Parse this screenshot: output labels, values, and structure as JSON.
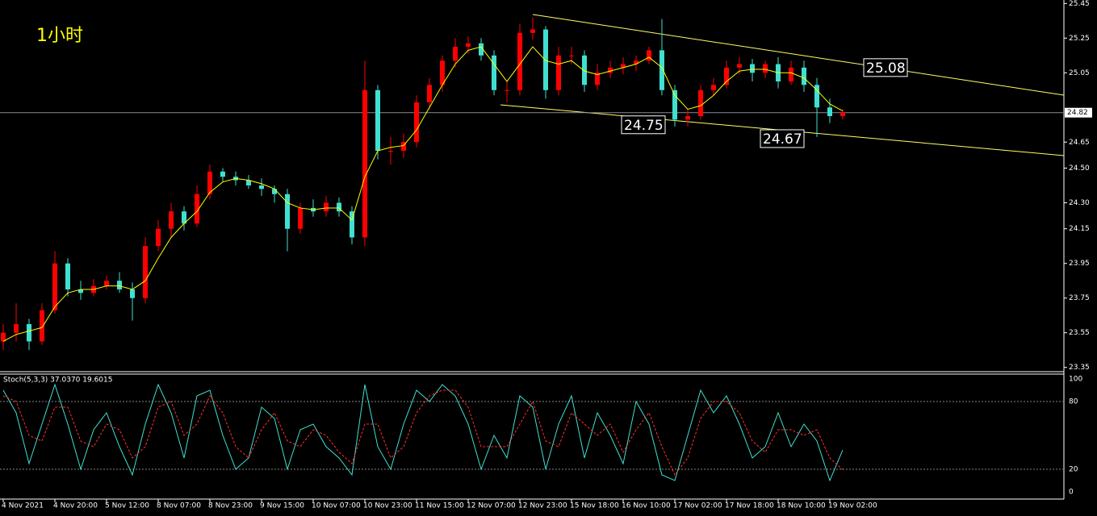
{
  "chart_data": {
    "type": "candlestick",
    "title": "1小时",
    "categories": [
      "4 Nov 2021",
      null,
      null,
      null,
      "4 Nov 20:00",
      null,
      null,
      null,
      "5 Nov 12:00",
      null,
      null,
      null,
      "8 Nov 07:00",
      null,
      null,
      null,
      "8 Nov 23:00",
      null,
      null,
      null,
      "9 Nov 15:00",
      null,
      null,
      null,
      "10 Nov 07:00",
      null,
      null,
      null,
      "10 Nov 23:00",
      null,
      null,
      null,
      "11 Nov 15:00",
      null,
      null,
      null,
      "12 Nov 07:00",
      null,
      null,
      null,
      "12 Nov 23:00",
      null,
      null,
      null,
      "15 Nov 18:00",
      null,
      null,
      null,
      "16 Nov 10:00",
      null,
      null,
      null,
      "17 Nov 02:00",
      null,
      null,
      null,
      "17 Nov 18:00",
      null,
      null,
      null,
      "18 Nov 10:00",
      null,
      null,
      null,
      "19 Nov 02:00",
      null
    ],
    "open": [
      23.5,
      23.55,
      23.6,
      23.5,
      23.68,
      23.95,
      23.8,
      23.78,
      23.82,
      23.85,
      23.8,
      23.75,
      24.05,
      24.15,
      24.25,
      24.18,
      24.35,
      24.48,
      24.45,
      24.43,
      24.4,
      24.38,
      24.35,
      24.15,
      24.27,
      24.25,
      24.3,
      24.25,
      24.1,
      24.95,
      24.6,
      24.6,
      24.65,
      24.88,
      24.98,
      25.12,
      25.2,
      25.22,
      25.15,
      24.95,
      24.95,
      25.28,
      25.3,
      24.95,
      25.15,
      25.15,
      24.98,
      25.05,
      25.08,
      25.1,
      25.12,
      25.18,
      24.95,
      24.78,
      24.8,
      24.95,
      24.98,
      25.08,
      25.1,
      25.05,
      25.1,
      25.0,
      25.08,
      24.98,
      24.85,
      24.8
    ],
    "high": [
      23.6,
      23.72,
      23.63,
      23.72,
      24.02,
      23.98,
      23.85,
      23.86,
      23.88,
      23.9,
      23.84,
      24.1,
      24.2,
      24.3,
      24.28,
      24.4,
      24.52,
      24.5,
      24.48,
      24.46,
      24.44,
      24.4,
      24.38,
      24.3,
      24.32,
      24.34,
      24.33,
      24.28,
      25.12,
      24.98,
      24.68,
      24.7,
      24.92,
      25.02,
      25.15,
      25.25,
      25.26,
      25.25,
      25.18,
      25.0,
      25.33,
      25.37,
      25.32,
      25.2,
      25.2,
      25.18,
      25.1,
      25.12,
      25.14,
      25.15,
      25.2,
      25.36,
      24.98,
      24.84,
      24.98,
      25.02,
      25.12,
      25.14,
      25.13,
      25.12,
      25.14,
      25.12,
      25.12,
      25.02,
      24.9,
      24.84
    ],
    "low": [
      23.45,
      23.5,
      23.45,
      23.48,
      23.66,
      23.76,
      23.74,
      23.76,
      23.8,
      23.78,
      23.62,
      23.72,
      24.02,
      24.1,
      24.14,
      24.16,
      24.32,
      24.42,
      24.4,
      24.38,
      24.34,
      24.3,
      24.02,
      24.12,
      24.22,
      24.22,
      24.22,
      24.06,
      24.05,
      24.55,
      24.52,
      24.56,
      24.62,
      24.84,
      24.94,
      25.08,
      25.16,
      25.12,
      24.92,
      24.88,
      24.92,
      25.24,
      24.9,
      24.92,
      25.1,
      24.94,
      24.95,
      25.02,
      25.04,
      25.06,
      25.1,
      24.92,
      24.74,
      24.74,
      24.78,
      24.92,
      24.96,
      25.04,
      25.0,
      25.02,
      24.96,
      24.98,
      24.94,
      24.68,
      24.76,
      24.78
    ],
    "close": [
      23.55,
      23.6,
      23.5,
      23.68,
      23.95,
      23.8,
      23.78,
      23.82,
      23.85,
      23.8,
      23.75,
      24.05,
      24.15,
      24.25,
      24.18,
      24.35,
      24.48,
      24.45,
      24.43,
      24.4,
      24.38,
      24.35,
      24.15,
      24.27,
      24.25,
      24.3,
      24.25,
      24.1,
      24.95,
      24.6,
      24.6,
      24.65,
      24.88,
      24.98,
      25.12,
      25.2,
      25.22,
      25.15,
      24.95,
      24.95,
      25.28,
      25.3,
      24.95,
      25.15,
      25.15,
      24.98,
      25.05,
      25.08,
      25.1,
      25.12,
      25.18,
      24.95,
      24.78,
      24.8,
      24.95,
      24.98,
      25.08,
      25.1,
      25.05,
      25.1,
      25.0,
      25.08,
      24.98,
      24.85,
      24.8,
      24.82
    ],
    "up_color": "#ff0000",
    "down_color": "#40e0d0",
    "ma": {
      "color": "#ffff00",
      "values": [
        23.5,
        23.54,
        23.56,
        23.58,
        23.7,
        23.78,
        23.8,
        23.8,
        23.82,
        23.82,
        23.8,
        23.85,
        23.98,
        24.1,
        24.18,
        24.25,
        24.36,
        24.42,
        24.44,
        24.43,
        24.41,
        24.38,
        24.3,
        24.27,
        24.26,
        24.27,
        24.27,
        24.2,
        24.45,
        24.6,
        24.62,
        24.63,
        24.72,
        24.85,
        24.98,
        25.1,
        25.18,
        25.2,
        25.1,
        25.0,
        25.1,
        25.2,
        25.12,
        25.1,
        25.12,
        25.06,
        25.04,
        25.06,
        25.08,
        25.1,
        25.14,
        25.08,
        24.92,
        24.84,
        24.86,
        24.92,
        25.0,
        25.06,
        25.07,
        25.07,
        25.05,
        25.05,
        25.02,
        24.95,
        24.87,
        24.83
      ]
    },
    "ylim": [
      23.33,
      25.47
    ],
    "yticks": [
      25.45,
      25.25,
      25.05,
      24.65,
      {
        "value": 24.5,
        "label": "24.50"
      },
      {
        "value": 24.3,
        "label": "24.30"
      },
      24.15,
      23.95,
      23.75,
      23.55,
      23.35
    ],
    "current_price": 24.82,
    "annotations": [
      25.08,
      24.75,
      24.67
    ],
    "indicator": {
      "label": "Stoch(5,3,3) 37.0370 19.6015",
      "ylim": [
        0,
        100
      ],
      "yticks": [
        100,
        80,
        20,
        0
      ],
      "series": [
        {
          "color": "#40e0d0",
          "values": [
            90,
            70,
            25,
            60,
            95,
            60,
            20,
            55,
            70,
            40,
            15,
            60,
            95,
            70,
            30,
            85,
            90,
            50,
            20,
            30,
            75,
            65,
            20,
            55,
            60,
            40,
            30,
            15,
            95,
            40,
            20,
            60,
            90,
            80,
            95,
            85,
            60,
            20,
            50,
            30,
            85,
            75,
            20,
            60,
            85,
            30,
            70,
            50,
            25,
            80,
            60,
            15,
            10,
            50,
            90,
            70,
            85,
            60,
            30,
            40,
            70,
            40,
            60,
            45,
            10,
            37.037
          ]
        },
        {
          "color": "#ff3030",
          "values": [
            85,
            80,
            50,
            45,
            75,
            75,
            45,
            40,
            60,
            55,
            30,
            40,
            75,
            80,
            50,
            60,
            85,
            70,
            40,
            30,
            55,
            70,
            45,
            40,
            55,
            50,
            35,
            25,
            60,
            60,
            30,
            40,
            70,
            85,
            90,
            90,
            75,
            40,
            40,
            40,
            60,
            80,
            45,
            40,
            70,
            60,
            50,
            60,
            35,
            55,
            70,
            40,
            15,
            30,
            65,
            80,
            80,
            70,
            45,
            35,
            55,
            55,
            50,
            55,
            30,
            19.6015
          ]
        }
      ]
    }
  }
}
